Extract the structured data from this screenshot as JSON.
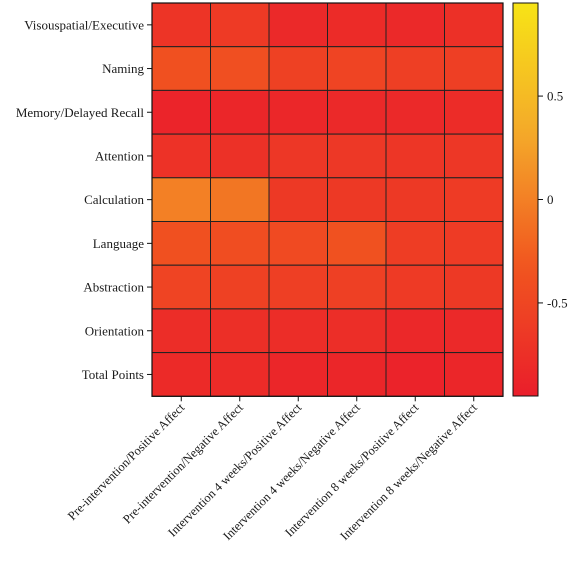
{
  "chart_data": {
    "type": "heatmap",
    "title": "",
    "xlabel": "",
    "ylabel": "",
    "rows": [
      "Visouspatial/Executive",
      "Naming",
      "Memory/Delayed Recall",
      "Attention",
      "Calculation",
      "Language",
      "Abstraction",
      "Orientation",
      "Total Points"
    ],
    "columns": [
      "Pre-intervention/Positive Affect",
      "Pre-intervention/Negative Affect",
      "Intervention 4 weeks/Positive Affect",
      "Intervention 4 weeks/Negative Affect",
      "Intervention 8 weeks/Positive Affect",
      "Intervention 8 weeks/Negative Affect"
    ],
    "values": [
      [
        -0.7,
        -0.63,
        -0.83,
        -0.8,
        -0.82,
        -0.75
      ],
      [
        -0.38,
        -0.4,
        -0.55,
        -0.52,
        -0.58,
        -0.58
      ],
      [
        -0.88,
        -0.86,
        -0.85,
        -0.82,
        -0.83,
        -0.79
      ],
      [
        -0.72,
        -0.73,
        -0.67,
        -0.66,
        -0.68,
        -0.67
      ],
      [
        0.0,
        -0.07,
        -0.65,
        -0.64,
        -0.64,
        -0.62
      ],
      [
        -0.39,
        -0.42,
        -0.45,
        -0.37,
        -0.6,
        -0.62
      ],
      [
        -0.52,
        -0.55,
        -0.58,
        -0.56,
        -0.63,
        -0.64
      ],
      [
        -0.78,
        -0.76,
        -0.78,
        -0.77,
        -0.84,
        -0.82
      ],
      [
        -0.81,
        -0.8,
        -0.86,
        -0.86,
        -0.89,
        -0.86
      ]
    ],
    "colorbar": {
      "range": [
        -0.95,
        0.95
      ],
      "ticks": [
        0.5,
        0,
        -0.5
      ],
      "tick_labels": [
        "0.5",
        "0",
        "-0.5"
      ],
      "colors": [
        "#ea1e2b",
        "#f1561f",
        "#f4a92a",
        "#f7e416"
      ]
    },
    "grid": true,
    "legend_placement": "right"
  }
}
